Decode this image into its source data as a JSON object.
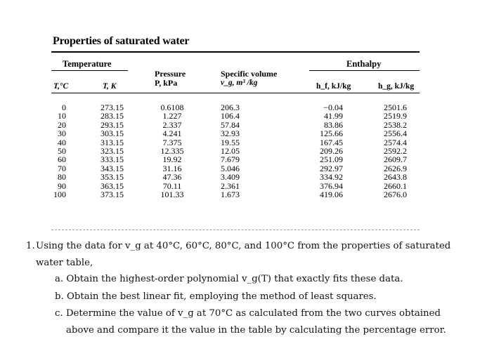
{
  "table": {
    "title": "Properties of saturated water",
    "group_temperature": "Temperature",
    "group_enthalpy": "Enthalpy",
    "headers": {
      "T_c": "T,°C",
      "T_k": "T, K",
      "pressure_line1": "Pressure",
      "pressure_line2": "P, kPa",
      "volume_line1": "Specific volume",
      "volume_line2": "v_g, m³ /kg",
      "hf": "h_f, kJ/kg",
      "hg": "h_g, kJ/kg"
    },
    "columns": {
      "T_c": [
        "0",
        "10",
        "20",
        "30",
        "40",
        "50",
        "60",
        "70",
        "80",
        "90",
        "100"
      ],
      "T_k": [
        "273.15",
        "283.15",
        "293.15",
        "303.15",
        "313.15",
        "323.15",
        "333.15",
        "343.15",
        "353.15",
        "363.15",
        "373.15"
      ],
      "P": [
        "0.6108",
        "1.227",
        "2.337",
        "4.241",
        "7.375",
        "12.335",
        "19.92",
        "31.16",
        "47.36",
        "70.11",
        "101.33"
      ],
      "vg": [
        "206.3",
        "106.4",
        "57.84",
        "32.93",
        "19.55",
        "12.05",
        "7.679",
        "5.046",
        "3.409",
        "2.361",
        "1.673"
      ],
      "hf": [
        "−0.04",
        "41.99",
        "83.86",
        "125.66",
        "167.45",
        "209.26",
        "251.09",
        "292.97",
        "334.92",
        "376.94",
        "419.06"
      ],
      "hg": [
        "2501.6",
        "2519.9",
        "2538.2",
        "2556.4",
        "2574.4",
        "2592.2",
        "2609.7",
        "2626.9",
        "2643.8",
        "2660.1",
        "2676.0"
      ]
    }
  },
  "problem": {
    "number": "1.",
    "line1": "Using the data for v_g at 40°C, 60°C, 80°C, and 100°C from the properties of saturated",
    "line2": "water table,",
    "a": "a. Obtain the highest-order polynomial v_g(T) that exactly fits these data.",
    "b": "b. Obtain the best linear fit, employing the method of least squares.",
    "c1": "c. Determine the value of v_g at 70°C as calculated from the two curves obtained",
    "c2": "above and compare it the value in the table by calculating the percentage error."
  }
}
